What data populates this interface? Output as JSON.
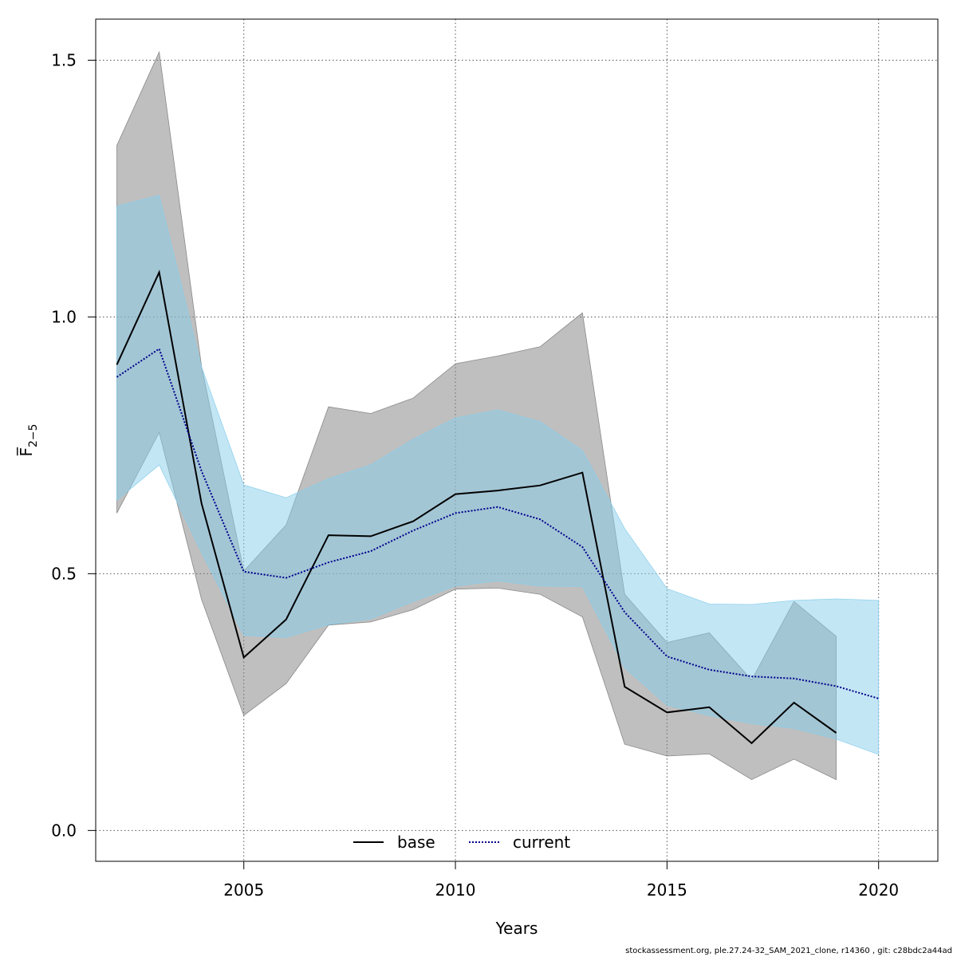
{
  "chart_data": {
    "type": "line",
    "xlabel": "Years",
    "ylabel": "F̅",
    "ylabel_subscript": "2−5",
    "xlim": [
      2001.5,
      2021.4
    ],
    "ylim": [
      -0.06,
      1.58
    ],
    "x_ticks": [
      2005,
      2010,
      2015,
      2020
    ],
    "y_ticks": [
      0.0,
      0.5,
      1.0,
      1.5
    ],
    "x_tick_labels": [
      "2005",
      "2010",
      "2015",
      "2020"
    ],
    "y_tick_labels": [
      "0.0",
      "0.5",
      "1.0",
      "1.5"
    ],
    "grid": true,
    "legend_position": "bottom",
    "series": [
      {
        "name": "base",
        "color": "#000000",
        "band_color": "#808080",
        "line_style": "solid",
        "x": [
          2002,
          2003,
          2004,
          2005,
          2006,
          2007,
          2008,
          2009,
          2010,
          2011,
          2012,
          2013,
          2014,
          2015,
          2016,
          2017,
          2018,
          2019
        ],
        "values": [
          0.907,
          1.087,
          0.637,
          0.337,
          0.411,
          0.575,
          0.573,
          0.602,
          0.655,
          0.662,
          0.672,
          0.697,
          0.28,
          0.23,
          0.24,
          0.17,
          0.249,
          0.19
        ],
        "lower": [
          0.618,
          0.775,
          0.45,
          0.224,
          0.286,
          0.4,
          0.406,
          0.43,
          0.47,
          0.472,
          0.46,
          0.416,
          0.168,
          0.145,
          0.149,
          0.099,
          0.139,
          0.099
        ],
        "upper": [
          1.334,
          1.516,
          0.904,
          0.505,
          0.595,
          0.825,
          0.812,
          0.842,
          0.909,
          0.924,
          0.942,
          1.008,
          0.46,
          0.366,
          0.385,
          0.293,
          0.446,
          0.378
        ]
      },
      {
        "name": "current",
        "color": "#00008b",
        "band_color": "#87ceeb",
        "line_style": "dotted",
        "x": [
          2002,
          2003,
          2004,
          2005,
          2006,
          2007,
          2008,
          2009,
          2010,
          2011,
          2012,
          2013,
          2014,
          2015,
          2016,
          2017,
          2018,
          2019,
          2020
        ],
        "values": [
          0.883,
          0.938,
          0.7,
          0.504,
          0.492,
          0.522,
          0.544,
          0.584,
          0.618,
          0.63,
          0.606,
          0.552,
          0.425,
          0.339,
          0.313,
          0.3,
          0.296,
          0.281,
          0.257
        ],
        "lower": [
          0.643,
          0.712,
          0.541,
          0.38,
          0.376,
          0.401,
          0.412,
          0.446,
          0.476,
          0.486,
          0.476,
          0.475,
          0.317,
          0.244,
          0.224,
          0.208,
          0.199,
          0.178,
          0.148
        ],
        "upper": [
          1.216,
          1.237,
          0.903,
          0.673,
          0.648,
          0.685,
          0.712,
          0.762,
          0.803,
          0.819,
          0.796,
          0.74,
          0.588,
          0.471,
          0.441,
          0.44,
          0.448,
          0.451,
          0.448
        ]
      }
    ]
  },
  "footer": {
    "text": "stockassessment.org, ple.27.24-32_SAM_2021_clone, r14360 , git: c28bdc2a44ad"
  }
}
